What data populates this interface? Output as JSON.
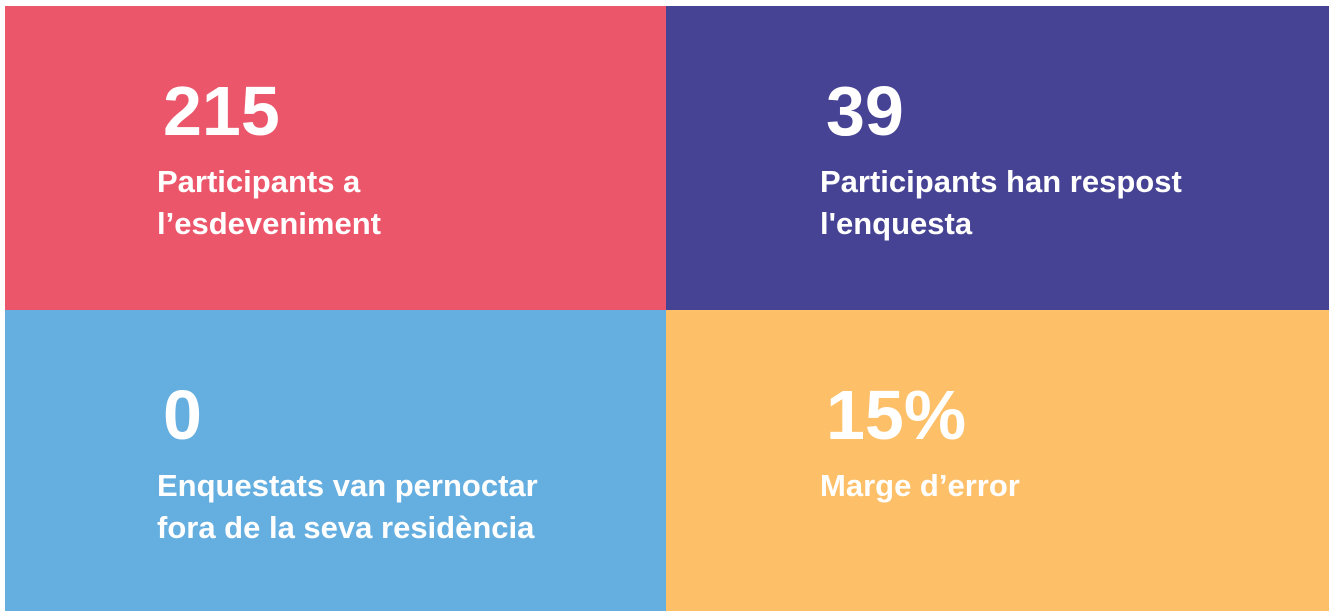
{
  "tiles": [
    {
      "value": "215",
      "label": [
        "Participants a",
        "l’esdeveniment"
      ],
      "color": "#ec566b"
    },
    {
      "value": "39",
      "label": [
        "Participants han respost",
        "l'enquesta"
      ],
      "color": "#464394"
    },
    {
      "value": "0",
      "label": [
        "Enquestats van pernoctar",
        "fora de la seva residència"
      ],
      "color": "#65aee0"
    },
    {
      "value": "15%",
      "label": [
        "Marge d’error"
      ],
      "color": "#fdbf67"
    }
  ]
}
